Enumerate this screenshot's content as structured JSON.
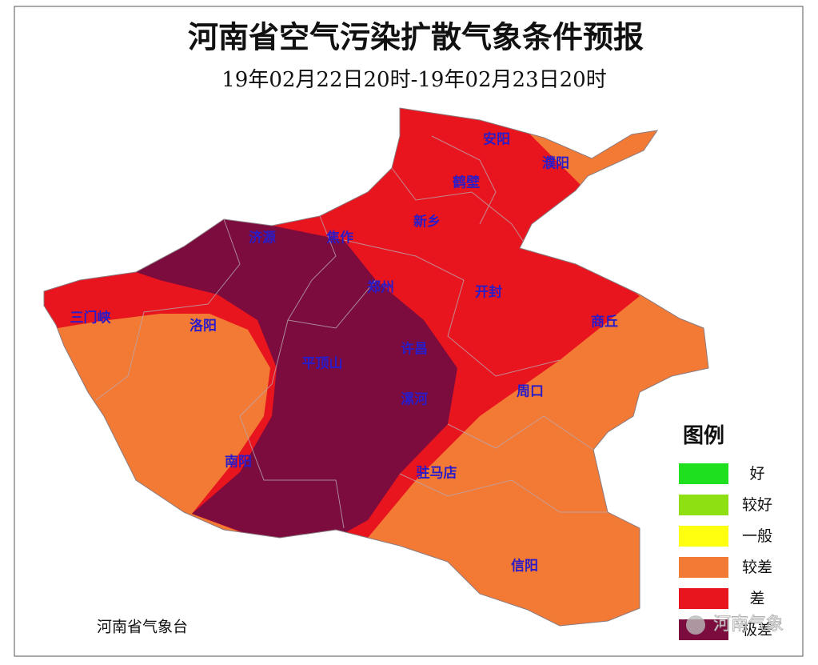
{
  "title": "河南省空气污染扩散气象条件预报",
  "subtitle": "19年02月22日20时-19年02月23日20时",
  "cities": [
    {
      "name": "安阳",
      "pos": "621,175"
    },
    {
      "name": "濮阳",
      "pos": "695,205"
    },
    {
      "name": "鹤壁",
      "pos": "583,229"
    },
    {
      "name": "新乡",
      "pos": "534,278"
    },
    {
      "name": "济源",
      "pos": "328,298"
    },
    {
      "name": "焦作",
      "pos": "425,298"
    },
    {
      "name": "郑州",
      "pos": "476,360"
    },
    {
      "name": "开封",
      "pos": "611,366"
    },
    {
      "name": "三门峡",
      "pos": "113,398"
    },
    {
      "name": "洛阳",
      "pos": "254,408"
    },
    {
      "name": "商丘",
      "pos": "756,403"
    },
    {
      "name": "许昌",
      "pos": "518,437"
    },
    {
      "name": "平顶山",
      "pos": "403,455"
    },
    {
      "name": "周口",
      "pos": "663,490"
    },
    {
      "name": "漯河",
      "pos": "518,500"
    },
    {
      "name": "南阳",
      "pos": "298,578"
    },
    {
      "name": "驻马店",
      "pos": "546,592"
    },
    {
      "name": "信阳",
      "pos": "656,708"
    }
  ],
  "legend": {
    "title": "图例",
    "items": [
      {
        "label": "好",
        "color": "#1ee01e"
      },
      {
        "label": "较好",
        "color": "#8ee012"
      },
      {
        "label": "一般",
        "color": "#ffff10"
      },
      {
        "label": "较差",
        "color": "#f37a35"
      },
      {
        "label": "差",
        "color": "#e8141e"
      },
      {
        "label": "极差",
        "color": "#7c0c3e"
      }
    ]
  },
  "source": "河南省气象台",
  "watermark": "河南气象"
}
